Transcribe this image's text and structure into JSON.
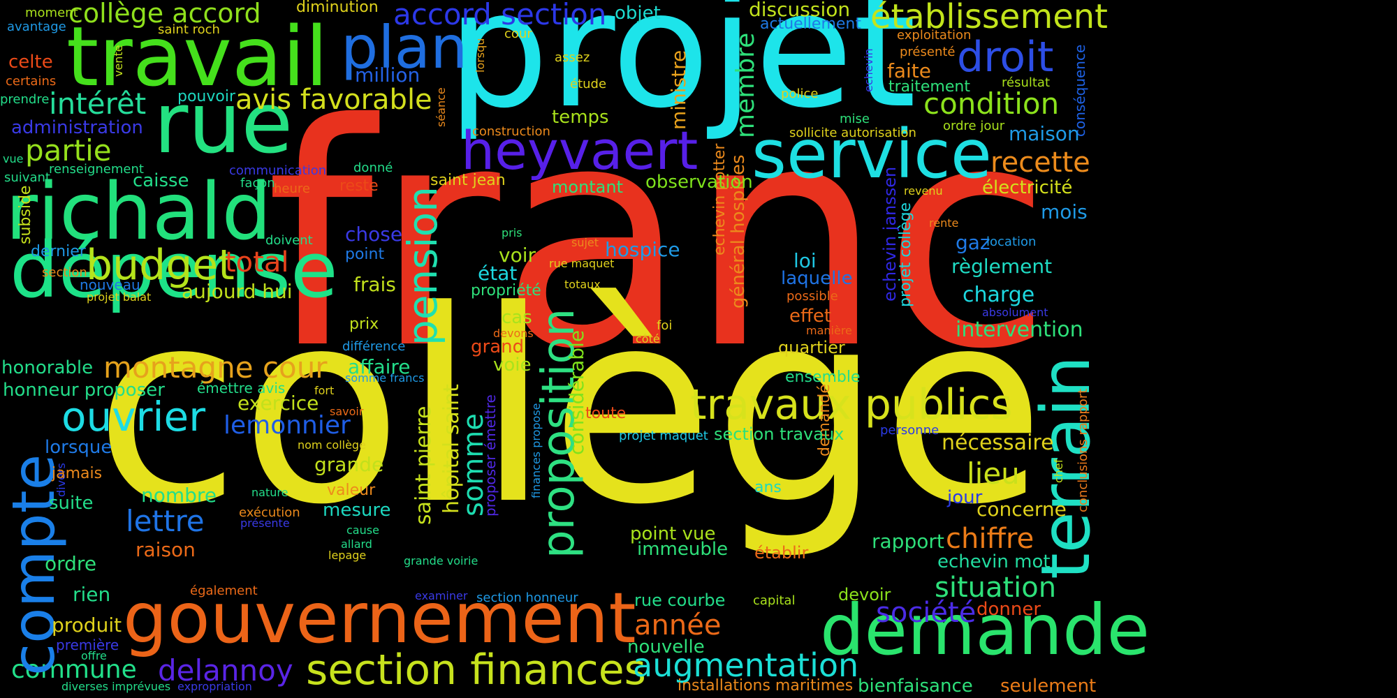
{
  "words": [
    {
      "text": "franc",
      "color": "#e8321e"
    },
    {
      "text": "collège",
      "color": "#e5e21c"
    },
    {
      "text": "projet",
      "color": "#1de4ea"
    },
    {
      "text": "richald",
      "color": "#22e07c"
    },
    {
      "text": "travail",
      "color": "#45e01c"
    },
    {
      "text": "rue",
      "color": "#23e181"
    },
    {
      "text": "dépense",
      "color": "#1de288"
    },
    {
      "text": "gouvernement",
      "color": "#ec6418"
    },
    {
      "text": "demande",
      "color": "#2ae46d"
    },
    {
      "text": "service",
      "color": "#1edfe2"
    },
    {
      "text": "terrain",
      "color": "#1fe0c4"
    },
    {
      "text": "compte",
      "color": "#1a7fe8"
    },
    {
      "text": "plan",
      "color": "#1f6ee0"
    },
    {
      "text": "heyvaert",
      "color": "#5720e8"
    },
    {
      "text": "section finances",
      "color": "#c7e21d"
    },
    {
      "text": "travaux publics",
      "color": "#d7e21c"
    },
    {
      "text": "proposition",
      "color": "#2ee082"
    },
    {
      "text": "budget",
      "color": "#b5e31b"
    },
    {
      "text": "ouvrier",
      "color": "#1ddce4"
    },
    {
      "text": "établissement",
      "color": "#c2e41b"
    },
    {
      "text": "droit",
      "color": "#2d4ee6"
    },
    {
      "text": "pension",
      "color": "#1fe0b0"
    },
    {
      "text": "augmentation",
      "color": "#1ce0d6"
    },
    {
      "text": "montagne cour",
      "color": "#e6a21c"
    },
    {
      "text": "collège accord",
      "color": "#8fe01c"
    },
    {
      "text": "accord section",
      "color": "#2c38e8"
    },
    {
      "text": "avis favorable",
      "color": "#d4e01d"
    },
    {
      "text": "intérêt",
      "color": "#25dd9a"
    },
    {
      "text": "partie",
      "color": "#95e01c"
    },
    {
      "text": "condition",
      "color": "#8ce21c"
    },
    {
      "text": "delannoy",
      "color": "#5a25e6"
    },
    {
      "text": "commune",
      "color": "#22e08a"
    },
    {
      "text": "lettre",
      "color": "#1f74e6"
    },
    {
      "text": "lemonnier",
      "color": "#1f5ee6"
    },
    {
      "text": "total",
      "color": "#e8431c"
    },
    {
      "text": "année",
      "color": "#ec6918"
    },
    {
      "text": "société",
      "color": "#4b2ce6"
    },
    {
      "text": "situation",
      "color": "#2ee07a"
    },
    {
      "text": "chiffre",
      "color": "#ec7c18"
    },
    {
      "text": "recette",
      "color": "#ec8b1c"
    },
    {
      "text": "somme",
      "color": "#1ddcb0"
    },
    {
      "text": "membre",
      "color": "#2ee07a"
    },
    {
      "text": "ministre",
      "color": "#e9a21c"
    },
    {
      "text": "lieu",
      "color": "#c9e01c"
    },
    {
      "text": "hôpital saint",
      "color": "#d4e01c"
    },
    {
      "text": "saint pierre",
      "color": "#c7e21c"
    },
    {
      "text": "considérable",
      "color": "#80e21c"
    },
    {
      "text": "général hospices",
      "color": "#ec8a1c"
    },
    {
      "text": "echevin janssen",
      "color": "#3028e4"
    },
    {
      "text": "echevin potter",
      "color": "#ec8a1c"
    },
    {
      "text": "projet collège",
      "color": "#1dd6dc"
    },
    {
      "text": "conséquence",
      "color": "#1e62e6"
    },
    {
      "text": "conclusions rapport",
      "color": "#ec7a1c"
    },
    {
      "text": "demandé",
      "color": "#ec8a1c"
    },
    {
      "text": "proposer émettre",
      "color": "#5028e6"
    },
    {
      "text": "finances propose",
      "color": "#1f9ae6"
    },
    {
      "text": "séance",
      "color": "#ec8a1c"
    },
    {
      "text": "lorsqu",
      "color": "#e6a21c"
    },
    {
      "text": "vente",
      "color": "#c2e01c"
    },
    {
      "text": "echevin",
      "color": "#3a3ae6"
    },
    {
      "text": "subside",
      "color": "#c7e21c"
    },
    {
      "text": "divers",
      "color": "#2a3ae6"
    },
    {
      "text": "chef",
      "color": "#c2e01c"
    },
    {
      "text": "temps",
      "color": "#a9e21c"
    },
    {
      "text": "montant",
      "color": "#2ee07a"
    },
    {
      "text": "observation",
      "color": "#7ee21c"
    },
    {
      "text": "discussion",
      "color": "#c2e21c"
    },
    {
      "text": "actuellement",
      "color": "#1f7ae6"
    },
    {
      "text": "objet",
      "color": "#1ddcd0"
    },
    {
      "text": "million",
      "color": "#2462e6"
    },
    {
      "text": "hospice",
      "color": "#1f9ae6"
    },
    {
      "text": "loi",
      "color": "#1fc8e4"
    },
    {
      "text": "laquelle",
      "color": "#1f74e6"
    },
    {
      "text": "effet",
      "color": "#ec6a18"
    },
    {
      "text": "quartier",
      "color": "#e0d21c"
    },
    {
      "text": "ensemble",
      "color": "#23dd8a"
    },
    {
      "text": "intervention",
      "color": "#2ee07a"
    },
    {
      "text": "règlement",
      "color": "#1fdcc4"
    },
    {
      "text": "charge",
      "color": "#1dd8e0"
    },
    {
      "text": "maison",
      "color": "#1f9ae6"
    },
    {
      "text": "mois",
      "color": "#1f9ae6"
    },
    {
      "text": "gaz",
      "color": "#1f7ae6"
    },
    {
      "text": "location",
      "color": "#1f9ae6"
    },
    {
      "text": "électricité",
      "color": "#d4e01c"
    },
    {
      "text": "nécessaire",
      "color": "#e0d21c"
    },
    {
      "text": "concerne",
      "color": "#e0d21c"
    },
    {
      "text": "jour",
      "color": "#2a3ae6"
    },
    {
      "text": "rapport",
      "color": "#2ee07a"
    },
    {
      "text": "echevin mot",
      "color": "#22dca0"
    },
    {
      "text": "donner",
      "color": "#ec4a18"
    },
    {
      "text": "devoir",
      "color": "#8ce21c"
    },
    {
      "text": "seulement",
      "color": "#ec7c18"
    },
    {
      "text": "bienfaisance",
      "color": "#2ee07a"
    },
    {
      "text": "installations maritimes",
      "color": "#ec8a1c"
    },
    {
      "text": "nouvelle",
      "color": "#2ee07a"
    },
    {
      "text": "rue courbe",
      "color": "#23dd8a"
    },
    {
      "text": "capital",
      "color": "#a9e21c"
    },
    {
      "text": "établir",
      "color": "#ec6a18"
    },
    {
      "text": "point vue",
      "color": "#a9e21c"
    },
    {
      "text": "immeuble",
      "color": "#2ee07a"
    },
    {
      "text": "section travaux",
      "color": "#2ee07a"
    },
    {
      "text": "ans",
      "color": "#1dd8c0"
    },
    {
      "text": "projet maquet",
      "color": "#1fc8e4"
    },
    {
      "text": "personne",
      "color": "#2a3ae6"
    },
    {
      "text": "toute",
      "color": "#ec4a18"
    },
    {
      "text": "grand",
      "color": "#ec4a18"
    },
    {
      "text": "voie",
      "color": "#a9e21c"
    },
    {
      "text": "cas",
      "color": "#a9e21c"
    },
    {
      "text": "devons",
      "color": "#ec6a18"
    },
    {
      "text": "voir",
      "color": "#a9e21c"
    },
    {
      "text": "état",
      "color": "#1dd8e0"
    },
    {
      "text": "propriété",
      "color": "#2ee07a"
    },
    {
      "text": "pris",
      "color": "#2ee07a"
    },
    {
      "text": "sujet",
      "color": "#ec8a1c"
    },
    {
      "text": "rue maquet",
      "color": "#e0d21c"
    },
    {
      "text": "totaux",
      "color": "#e0d21c"
    },
    {
      "text": "possible",
      "color": "#ec6a18"
    },
    {
      "text": "manière",
      "color": "#ec6a18"
    },
    {
      "text": "foi",
      "color": "#e0d21c"
    },
    {
      "text": "côté",
      "color": "#e0d21c"
    },
    {
      "text": "absolument",
      "color": "#3a3ae6"
    },
    {
      "text": "rente",
      "color": "#ec8a1c"
    },
    {
      "text": "revenu",
      "color": "#e0d21c"
    },
    {
      "text": "faite",
      "color": "#ec8a1c"
    },
    {
      "text": "présenté",
      "color": "#ec8a1c"
    },
    {
      "text": "exploitation",
      "color": "#ec8a1c"
    },
    {
      "text": "traitement",
      "color": "#2ee07a"
    },
    {
      "text": "résultat",
      "color": "#a9e21c"
    },
    {
      "text": "ordre jour",
      "color": "#a9e21c"
    },
    {
      "text": "sollicite autorisation",
      "color": "#e0d21c"
    },
    {
      "text": "mise",
      "color": "#2ee07a"
    },
    {
      "text": "police",
      "color": "#e0d21c"
    },
    {
      "text": "étude",
      "color": "#e0d21c"
    },
    {
      "text": "assez",
      "color": "#e0d21c"
    },
    {
      "text": "cour",
      "color": "#e0d21c"
    },
    {
      "text": "construction",
      "color": "#ec8a1c"
    },
    {
      "text": "saint jean",
      "color": "#e0d21c"
    },
    {
      "text": "donné",
      "color": "#23dd8a"
    },
    {
      "text": "reste",
      "color": "#ec4a18"
    },
    {
      "text": "chose",
      "color": "#3a3ae6"
    },
    {
      "text": "point",
      "color": "#1f7ae6"
    },
    {
      "text": "frais",
      "color": "#c2e01c"
    },
    {
      "text": "prix",
      "color": "#c2e01c"
    },
    {
      "text": "différence",
      "color": "#1f9ae6"
    },
    {
      "text": "affaire",
      "color": "#23dd8a"
    },
    {
      "text": "somme francs",
      "color": "#1f9ae6"
    },
    {
      "text": "exercice",
      "color": "#c2e01c"
    },
    {
      "text": "grande",
      "color": "#c2e01c"
    },
    {
      "text": "nom collège",
      "color": "#e0d21c"
    },
    {
      "text": "savoir",
      "color": "#ec6a18"
    },
    {
      "text": "valeur",
      "color": "#ec8a1c"
    },
    {
      "text": "mesure",
      "color": "#1dd8c0"
    },
    {
      "text": "cause",
      "color": "#23dd8a"
    },
    {
      "text": "allard",
      "color": "#23dd8a"
    },
    {
      "text": "lepage",
      "color": "#e0d21c"
    },
    {
      "text": "grande voirie",
      "color": "#23dd8a"
    },
    {
      "text": "examiner",
      "color": "#3a3ae6"
    },
    {
      "text": "section honneur",
      "color": "#1f9ae6"
    },
    {
      "text": "nature",
      "color": "#23dd8a"
    },
    {
      "text": "exécution",
      "color": "#ec8a1c"
    },
    {
      "text": "présente",
      "color": "#3a3ae6"
    },
    {
      "text": "fort",
      "color": "#e0d21c"
    },
    {
      "text": "émettre avis",
      "color": "#23dd8a"
    },
    {
      "text": "raison",
      "color": "#ec6a18"
    },
    {
      "text": "nombre",
      "color": "#23dd8a"
    },
    {
      "text": "également",
      "color": "#ec6a18"
    },
    {
      "text": "produit",
      "color": "#e0d21c"
    },
    {
      "text": "rien",
      "color": "#23dd8a"
    },
    {
      "text": "ordre",
      "color": "#2ee07a"
    },
    {
      "text": "suite",
      "color": "#23dd8a"
    },
    {
      "text": "jamais",
      "color": "#ec8a1c"
    },
    {
      "text": "lorsque",
      "color": "#1f7ae6"
    },
    {
      "text": "honneur proposer",
      "color": "#23dd8a"
    },
    {
      "text": "honorable",
      "color": "#23dd8a"
    },
    {
      "text": "première",
      "color": "#3a3ae6"
    },
    {
      "text": "offre",
      "color": "#23dd8a"
    },
    {
      "text": "diverses imprévues",
      "color": "#23dd8a"
    },
    {
      "text": "expropriation",
      "color": "#3a3ae6"
    },
    {
      "text": "aujourd hui",
      "color": "#c2e01c"
    },
    {
      "text": "projet balat",
      "color": "#e0d21c"
    },
    {
      "text": "nouveau",
      "color": "#1f7ae6"
    },
    {
      "text": "section",
      "color": "#ec8a1c"
    },
    {
      "text": "dernier",
      "color": "#1f9ae6"
    },
    {
      "text": "doivent",
      "color": "#23dd8a"
    },
    {
      "text": "caisse",
      "color": "#23dd8a"
    },
    {
      "text": "communication",
      "color": "#3a3ae6"
    },
    {
      "text": "façon",
      "color": "#23dd8a"
    },
    {
      "text": "heure",
      "color": "#ec6a18"
    },
    {
      "text": "renseignement",
      "color": "#23dd8a"
    },
    {
      "text": "suivant",
      "color": "#23dd8a"
    },
    {
      "text": "vue",
      "color": "#23dd8a"
    },
    {
      "text": "administration",
      "color": "#3a3ae6"
    },
    {
      "text": "prendre",
      "color": "#23dd8a"
    },
    {
      "text": "certains",
      "color": "#ec6a18"
    },
    {
      "text": "celte",
      "color": "#ec4a18"
    },
    {
      "text": "avantage",
      "color": "#1f9ae6"
    },
    {
      "text": "moment",
      "color": "#a9e21c"
    },
    {
      "text": "saint roch",
      "color": "#e0d21c"
    },
    {
      "text": "pouvoir",
      "color": "#1dd8c0"
    },
    {
      "text": "diminution",
      "color": "#e0d21c"
    }
  ]
}
